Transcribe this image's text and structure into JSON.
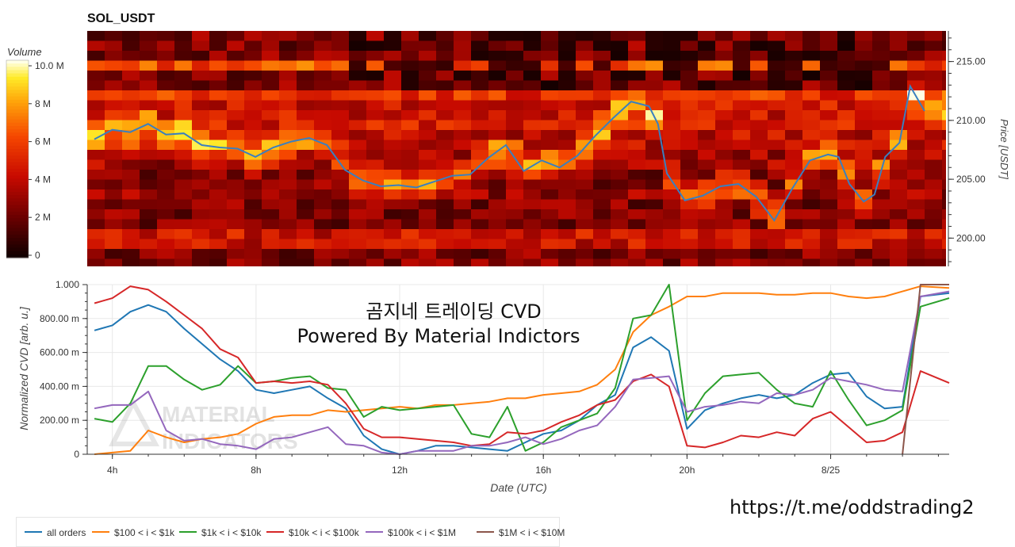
{
  "chart_data": [
    {
      "type": "heatmap",
      "title": "SOL_USDT",
      "ylabel": "Price [USDT]",
      "ylim": [
        197.6,
        217.6
      ],
      "yticks": [
        "215.00",
        "210.00",
        "205.00",
        "200.00"
      ],
      "ytick_values": [
        215,
        210,
        205,
        200
      ],
      "colorbar": {
        "title": "Volume",
        "ticks": [
          "10.0 M",
          "8 M",
          "6 M",
          "4 M",
          "2 M",
          "0"
        ],
        "range": [
          0,
          10.0
        ]
      },
      "price_series": {
        "name": "price",
        "color": "#3a7fbf",
        "x_hours": [
          3.5,
          4.0,
          4.5,
          5.0,
          5.5,
          6.0,
          6.5,
          7.0,
          7.5,
          8.0,
          8.5,
          9.0,
          9.5,
          10.0,
          10.5,
          11.0,
          11.5,
          12.0,
          12.5,
          13.0,
          13.5,
          14.0,
          14.5,
          15.0,
          15.5,
          16.0,
          16.5,
          17.0,
          17.5,
          18.0,
          18.5,
          19.0,
          19.25,
          19.5,
          20.0,
          20.5,
          21.0,
          21.5,
          22.0,
          22.5,
          23.0,
          23.5,
          24.0,
          24.3,
          24.6,
          25.0,
          25.3,
          25.6,
          26.0,
          26.3,
          26.7
        ],
        "y": [
          208.4,
          209.2,
          209.0,
          209.7,
          208.8,
          208.9,
          207.9,
          207.7,
          207.6,
          206.9,
          207.7,
          208.2,
          208.5,
          207.9,
          205.8,
          204.9,
          204.4,
          204.5,
          204.3,
          204.8,
          205.3,
          205.4,
          206.8,
          207.9,
          205.7,
          206.6,
          206.0,
          207.0,
          208.7,
          210.2,
          211.6,
          211.2,
          209.7,
          205.5,
          203.2,
          203.6,
          204.4,
          204.6,
          203.5,
          201.5,
          204.2,
          206.6,
          207.1,
          206.9,
          204.6,
          203.1,
          203.7,
          206.9,
          208.1,
          212.9,
          210.8
        ]
      }
    },
    {
      "type": "line",
      "xlabel": "Date (UTC)",
      "ylabel": "Normalized CVD [arb. u.]",
      "ylim": [
        0,
        1.0
      ],
      "xlim_hours": [
        3.3,
        27.3
      ],
      "xticks": [
        "4h",
        "8h",
        "12h",
        "16h",
        "20h",
        "8/25"
      ],
      "xtick_hours": [
        4,
        8,
        12,
        16,
        20,
        24
      ],
      "yticks": [
        "1.000",
        "800.00 m",
        "600.00 m",
        "400.00 m",
        "200.00 m",
        "0"
      ],
      "ytick_values": [
        1.0,
        0.8,
        0.6,
        0.4,
        0.2,
        0
      ],
      "annotation": [
        "곰지네 트레이딩 CVD",
        "Powered By Material Indictors"
      ],
      "watermark": [
        "MATERIAL",
        "INDICATORS"
      ],
      "x_hours": [
        3.5,
        4.0,
        4.5,
        5.0,
        5.5,
        6.0,
        6.5,
        7.0,
        7.5,
        8.0,
        8.5,
        9.0,
        9.5,
        10.0,
        10.5,
        11.0,
        11.5,
        12.0,
        12.5,
        13.0,
        13.5,
        14.0,
        14.5,
        15.0,
        15.5,
        16.0,
        16.5,
        17.0,
        17.5,
        18.0,
        18.5,
        19.0,
        19.5,
        20.0,
        20.5,
        21.0,
        21.5,
        22.0,
        22.5,
        23.0,
        23.5,
        24.0,
        24.5,
        25.0,
        25.5,
        26.0,
        26.5,
        27.3
      ],
      "series": [
        {
          "name": "all orders",
          "color": "#1f77b4",
          "values": [
            0.73,
            0.76,
            0.84,
            0.88,
            0.84,
            0.74,
            0.65,
            0.56,
            0.49,
            0.38,
            0.36,
            0.38,
            0.4,
            0.33,
            0.27,
            0.11,
            0.03,
            0.0,
            0.02,
            0.05,
            0.05,
            0.04,
            0.03,
            0.02,
            0.07,
            0.12,
            0.14,
            0.2,
            0.29,
            0.35,
            0.63,
            0.69,
            0.61,
            0.15,
            0.26,
            0.3,
            0.33,
            0.35,
            0.33,
            0.35,
            0.42,
            0.47,
            0.48,
            0.34,
            0.27,
            0.28,
            0.93,
            0.95
          ]
        },
        {
          "name": "$100 < i < $1k",
          "color": "#ff7f0e",
          "values": [
            0.0,
            0.01,
            0.02,
            0.14,
            0.1,
            0.07,
            0.09,
            0.1,
            0.12,
            0.18,
            0.22,
            0.23,
            0.23,
            0.26,
            0.25,
            0.26,
            0.27,
            0.28,
            0.27,
            0.29,
            0.29,
            0.3,
            0.31,
            0.33,
            0.33,
            0.35,
            0.36,
            0.37,
            0.41,
            0.5,
            0.72,
            0.82,
            0.87,
            0.93,
            0.93,
            0.95,
            0.95,
            0.95,
            0.94,
            0.94,
            0.95,
            0.95,
            0.93,
            0.92,
            0.93,
            0.96,
            0.99,
            0.98
          ]
        },
        {
          "name": "$1k < i < $10k",
          "color": "#2ca02c",
          "values": [
            0.21,
            0.19,
            0.3,
            0.52,
            0.52,
            0.44,
            0.38,
            0.41,
            0.52,
            0.42,
            0.43,
            0.45,
            0.46,
            0.39,
            0.38,
            0.22,
            0.28,
            0.26,
            0.27,
            0.28,
            0.29,
            0.12,
            0.1,
            0.28,
            0.02,
            0.07,
            0.16,
            0.2,
            0.24,
            0.39,
            0.8,
            0.82,
            1.0,
            0.2,
            0.36,
            0.46,
            0.47,
            0.48,
            0.38,
            0.3,
            0.28,
            0.49,
            0.32,
            0.17,
            0.2,
            0.26,
            0.87,
            0.92
          ]
        },
        {
          "name": "$10k < i < $100k",
          "color": "#d62728",
          "values": [
            0.89,
            0.92,
            0.99,
            0.97,
            0.9,
            0.82,
            0.74,
            0.62,
            0.57,
            0.42,
            0.43,
            0.42,
            0.43,
            0.41,
            0.3,
            0.15,
            0.1,
            0.1,
            0.09,
            0.08,
            0.07,
            0.05,
            0.06,
            0.13,
            0.12,
            0.14,
            0.19,
            0.23,
            0.29,
            0.32,
            0.43,
            0.47,
            0.4,
            0.05,
            0.04,
            0.07,
            0.11,
            0.1,
            0.13,
            0.11,
            0.21,
            0.25,
            0.16,
            0.07,
            0.08,
            0.13,
            0.49,
            0.42
          ]
        },
        {
          "name": "$100k < i < $1M",
          "color": "#9467bd",
          "values": [
            0.27,
            0.29,
            0.29,
            0.37,
            0.14,
            0.08,
            0.09,
            0.06,
            0.05,
            0.03,
            0.09,
            0.1,
            0.13,
            0.16,
            0.06,
            0.05,
            0.01,
            0.0,
            0.02,
            0.02,
            0.02,
            0.05,
            0.05,
            0.07,
            0.1,
            0.06,
            0.09,
            0.14,
            0.17,
            0.28,
            0.44,
            0.45,
            0.46,
            0.25,
            0.28,
            0.29,
            0.31,
            0.3,
            0.36,
            0.35,
            0.38,
            0.45,
            0.43,
            0.41,
            0.38,
            0.37,
            0.93,
            0.96
          ]
        },
        {
          "name": "$1M < i < $10M",
          "color": "#8c564b",
          "values": [
            null,
            null,
            null,
            null,
            null,
            null,
            null,
            null,
            null,
            null,
            null,
            null,
            null,
            null,
            null,
            null,
            null,
            null,
            null,
            null,
            null,
            null,
            null,
            null,
            null,
            null,
            null,
            null,
            null,
            null,
            null,
            null,
            null,
            null,
            null,
            null,
            null,
            null,
            null,
            null,
            null,
            null,
            null,
            null,
            null,
            0.0,
            1.0,
            1.0
          ]
        }
      ]
    }
  ],
  "footer": {
    "link": "https://t.me/oddstrading2"
  }
}
